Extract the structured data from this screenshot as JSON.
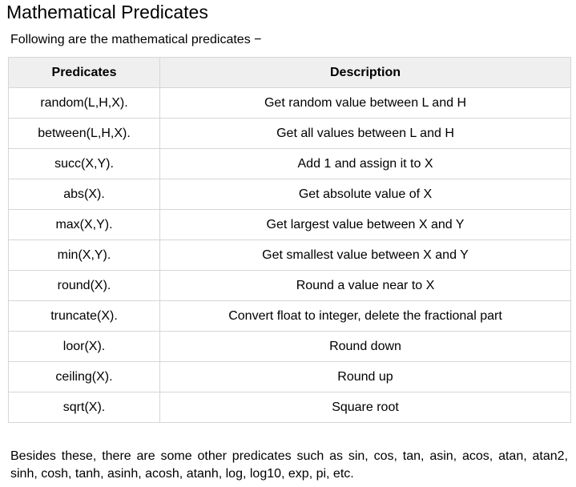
{
  "page": {
    "title": "Mathematical Predicates",
    "intro": "Following are the mathematical predicates −",
    "footer": "Besides these, there are some other predicates such as sin, cos, tan, asin, acos, atan, atan2, sinh, cosh, tanh, asinh, acosh, atanh, log, log10, exp, pi, etc."
  },
  "table": {
    "headers": [
      "Predicates",
      "Description"
    ],
    "rows": [
      [
        "random(L,H,X).",
        "Get random value between L and H"
      ],
      [
        "between(L,H,X).",
        "Get all values between L and H"
      ],
      [
        "succ(X,Y).",
        "Add 1 and assign it to X"
      ],
      [
        "abs(X).",
        "Get absolute value of X"
      ],
      [
        "max(X,Y).",
        "Get largest value between X and Y"
      ],
      [
        "min(X,Y).",
        "Get smallest value between X and Y"
      ],
      [
        "round(X).",
        "Round a value near to X"
      ],
      [
        "truncate(X).",
        "Convert float to integer, delete the fractional part"
      ],
      [
        "loor(X).",
        "Round down"
      ],
      [
        "ceiling(X).",
        "Round up"
      ],
      [
        "sqrt(X).",
        "Square root"
      ]
    ]
  },
  "colors": {
    "header_bg": "#efefef",
    "border": "#d6d6d6",
    "text": "#000000",
    "background": "#ffffff"
  }
}
